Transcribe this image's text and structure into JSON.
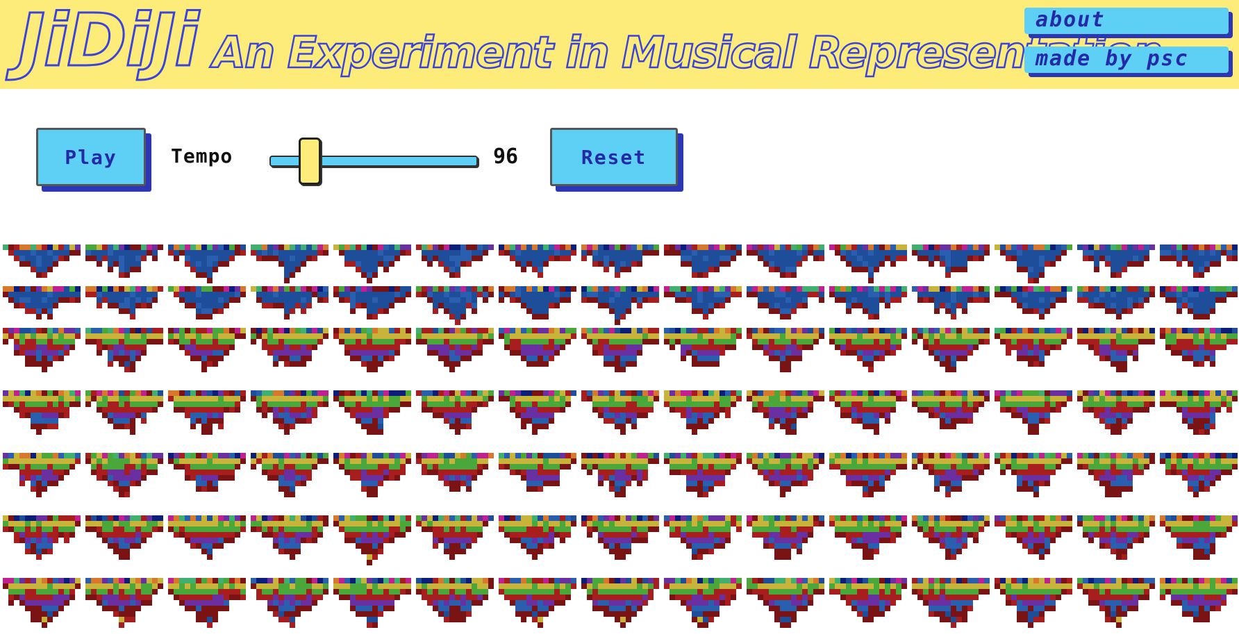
{
  "header": {
    "brand": "JiDiJi",
    "tagline": "An Experiment in Musical Representation",
    "nav": {
      "about": "about",
      "made_by": "made by psc"
    },
    "colors": {
      "background": "#fdeb7a",
      "outline": "#3a44d8",
      "button": "#5fd0f5"
    }
  },
  "controls": {
    "play_label": "Play",
    "tempo_label": "Tempo",
    "tempo_value": "96",
    "tempo_min": 40,
    "tempo_max": 400,
    "reset_label": "Reset"
  },
  "visualization": {
    "rows": 7,
    "blocks_per_row": 15,
    "palette": [
      "#1e4d9a",
      "#2a5fb0",
      "#7a1414",
      "#a81e1e",
      "#c8b43a",
      "#4aa83a",
      "#6a2fa0",
      "#d8782a",
      "#0a1e7a",
      "#c02090",
      "#3fb070"
    ]
  }
}
